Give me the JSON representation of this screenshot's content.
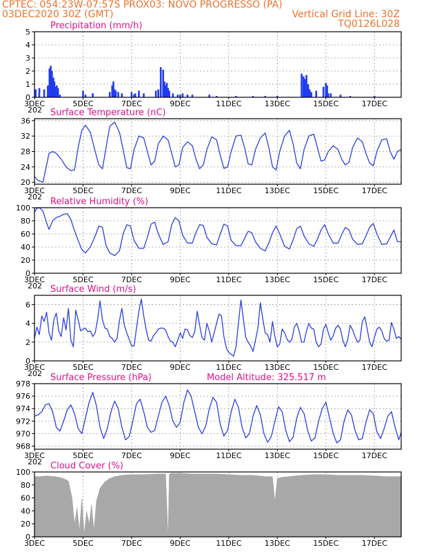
{
  "header": {
    "line1_left": "CPTEC:   054:23W-07:57S   PROX03: NOVO PROGRESSO (PA)",
    "line2_left": "03DEC2020 30Z (GMT)",
    "line2_right": "Vertical Grid Line: 30Z",
    "line3_right": "TQ0126L028"
  },
  "colors": {
    "header_text": "#e8732c",
    "panel_title": "#e0118a",
    "series_line": "#2b3fe0",
    "precip_bar": "#1f3bf0",
    "cloud_fill": "#a8a8a8",
    "grid": "#999999"
  },
  "shared_x": {
    "tick_labels": [
      "3DEC",
      "5DEC",
      "7DEC",
      "9DEC",
      "11DEC",
      "13DEC",
      "15DEC",
      "17DEC"
    ],
    "tick_days": [
      3,
      5,
      7,
      9,
      11,
      13,
      15,
      17
    ],
    "range_days": [
      3,
      18.1
    ],
    "cut_label": "202"
  },
  "chart_data": [
    {
      "id": "precipitation",
      "type": "bar",
      "title": "Precipitation (mm/h)",
      "ylim": [
        0,
        5
      ],
      "yticks": [
        0,
        1,
        2,
        3,
        4,
        5
      ],
      "grid": true,
      "x_days": [
        3.05,
        3.2,
        3.4,
        3.55,
        3.62,
        3.67,
        3.72,
        3.78,
        3.82,
        3.88,
        3.92,
        3.97,
        4.05,
        5.0,
        5.1,
        5.4,
        6.1,
        6.2,
        6.25,
        6.3,
        6.35,
        6.45,
        6.6,
        7.0,
        7.1,
        7.15,
        7.3,
        7.5,
        8.0,
        8.1,
        8.2,
        8.3,
        8.35,
        8.4,
        8.45,
        8.5,
        8.55,
        8.7,
        8.9,
        9.0,
        9.1,
        9.3,
        9.5,
        10.2,
        10.5,
        11.3,
        12.0,
        12.5,
        13.0,
        14.0,
        14.08,
        14.13,
        14.2,
        14.27,
        14.33,
        14.4,
        14.6,
        14.9,
        15.0,
        15.05,
        15.1,
        15.2,
        15.6,
        16.0,
        17.0
      ],
      "values": [
        0.6,
        0.7,
        0.6,
        0.9,
        2.2,
        2.4,
        2.0,
        1.5,
        1.2,
        0.8,
        0.9,
        0.7,
        0.2,
        0.5,
        0.2,
        0.3,
        0.4,
        0.9,
        1.2,
        0.6,
        0.5,
        0.4,
        0.3,
        0.4,
        0.2,
        0.3,
        0.5,
        0.3,
        0.5,
        0.6,
        2.3,
        2.1,
        1.2,
        0.9,
        1.1,
        0.7,
        0.5,
        0.3,
        0.2,
        0.2,
        0.3,
        0.2,
        0.2,
        0.2,
        0.1,
        0.1,
        0.1,
        0.1,
        0.1,
        1.8,
        1.6,
        1.4,
        1.7,
        1.0,
        0.6,
        0.4,
        0.5,
        0.8,
        1.1,
        0.9,
        0.3,
        0.3,
        0.2,
        0.1,
        0.1
      ]
    },
    {
      "id": "surface-temperature",
      "type": "line",
      "title": "Surface Temperature (nC)",
      "ylim": [
        19.5,
        36.5
      ],
      "yticks": [
        20,
        24,
        28,
        32,
        36
      ],
      "grid": true,
      "x_days": [
        3.0,
        3.15,
        3.35,
        3.5,
        3.6,
        3.75,
        3.9,
        4.1,
        4.3,
        4.5,
        4.65,
        4.8,
        4.95,
        5.1,
        5.3,
        5.5,
        5.65,
        5.8,
        5.95,
        6.1,
        6.3,
        6.5,
        6.65,
        6.8,
        6.95,
        7.1,
        7.3,
        7.5,
        7.65,
        7.8,
        7.95,
        8.1,
        8.3,
        8.5,
        8.65,
        8.8,
        8.95,
        9.1,
        9.3,
        9.5,
        9.65,
        9.8,
        9.95,
        10.1,
        10.3,
        10.5,
        10.65,
        10.8,
        10.95,
        11.1,
        11.3,
        11.5,
        11.65,
        11.8,
        11.95,
        12.1,
        12.3,
        12.5,
        12.65,
        12.8,
        12.95,
        13.1,
        13.3,
        13.5,
        13.65,
        13.8,
        13.95,
        14.1,
        14.3,
        14.5,
        14.65,
        14.8,
        14.95,
        15.1,
        15.3,
        15.5,
        15.65,
        15.8,
        15.95,
        16.1,
        16.3,
        16.5,
        16.65,
        16.8,
        16.95,
        17.1,
        17.3,
        17.5,
        17.65,
        17.8,
        17.95,
        18.1
      ],
      "values": [
        21.5,
        20.5,
        20.0,
        24.5,
        27.5,
        28.0,
        27.5,
        26.0,
        24.0,
        23.0,
        23.2,
        29.0,
        33.5,
        34.8,
        33.0,
        28.0,
        24.5,
        23.5,
        29.0,
        34.5,
        35.6,
        33.0,
        28.5,
        23.8,
        23.5,
        28.5,
        32.0,
        31.5,
        28.0,
        24.5,
        25.5,
        30.0,
        32.0,
        31.0,
        27.5,
        24.0,
        24.5,
        29.0,
        30.5,
        29.5,
        26.0,
        23.5,
        24.5,
        28.5,
        31.8,
        31.0,
        27.0,
        23.6,
        24.0,
        28.0,
        32.0,
        32.2,
        29.0,
        24.8,
        24.5,
        28.5,
        31.5,
        32.8,
        29.0,
        24.0,
        23.2,
        28.0,
        32.0,
        33.5,
        30.0,
        25.0,
        23.5,
        28.5,
        32.0,
        32.5,
        29.0,
        25.5,
        25.8,
        28.0,
        29.5,
        28.5,
        26.0,
        24.5,
        25.2,
        29.0,
        31.5,
        30.5,
        27.5,
        25.0,
        24.3,
        28.0,
        31.0,
        31.3,
        28.0,
        26.0,
        28.0,
        28.5
      ]
    },
    {
      "id": "relative-humidity",
      "type": "line",
      "title": "Relative Humidity (%)",
      "ylim": [
        0,
        100
      ],
      "yticks": [
        0,
        20,
        40,
        60,
        80,
        100
      ],
      "grid": true,
      "x_days": [
        3.0,
        3.1,
        3.2,
        3.35,
        3.5,
        3.6,
        3.75,
        3.9,
        4.05,
        4.2,
        4.35,
        4.5,
        4.6,
        4.8,
        4.95,
        5.1,
        5.3,
        5.5,
        5.65,
        5.8,
        5.95,
        6.1,
        6.3,
        6.5,
        6.65,
        6.8,
        6.95,
        7.1,
        7.3,
        7.5,
        7.65,
        7.8,
        7.95,
        8.1,
        8.3,
        8.5,
        8.65,
        8.8,
        8.95,
        9.1,
        9.3,
        9.5,
        9.65,
        9.8,
        9.95,
        10.1,
        10.3,
        10.5,
        10.65,
        10.8,
        10.95,
        11.1,
        11.3,
        11.5,
        11.65,
        11.8,
        11.95,
        12.1,
        12.3,
        12.5,
        12.65,
        12.8,
        12.95,
        13.1,
        13.3,
        13.5,
        13.65,
        13.8,
        13.95,
        14.1,
        14.3,
        14.5,
        14.65,
        14.8,
        14.95,
        15.1,
        15.3,
        15.5,
        15.65,
        15.8,
        15.95,
        16.1,
        16.3,
        16.5,
        16.65,
        16.8,
        16.95,
        17.1,
        17.3,
        17.5,
        17.65,
        17.8,
        17.95,
        18.1
      ],
      "values": [
        93,
        99,
        100,
        95,
        77,
        67,
        80,
        85,
        87,
        90,
        91,
        82,
        70,
        50,
        36,
        31,
        40,
        57,
        72,
        70,
        42,
        31,
        27,
        34,
        60,
        74,
        72,
        50,
        38,
        38,
        55,
        75,
        78,
        60,
        44,
        48,
        74,
        85,
        80,
        58,
        46,
        46,
        62,
        74,
        73,
        55,
        45,
        43,
        60,
        75,
        72,
        50,
        42,
        42,
        53,
        64,
        62,
        48,
        38,
        34,
        46,
        62,
        72,
        60,
        41,
        37,
        51,
        68,
        72,
        57,
        45,
        41,
        52,
        66,
        74,
        60,
        46,
        46,
        59,
        70,
        66,
        52,
        44,
        45,
        57,
        70,
        76,
        60,
        44,
        45,
        55,
        66,
        48,
        48
      ]
    },
    {
      "id": "surface-wind",
      "type": "line",
      "title": "Surface Wind (m/s)",
      "ylim": [
        0,
        7
      ],
      "yticks": [
        0,
        2,
        4,
        6
      ],
      "grid": true,
      "x_days": [
        3.0,
        3.1,
        3.2,
        3.3,
        3.4,
        3.5,
        3.6,
        3.7,
        3.8,
        3.9,
        4.0,
        4.1,
        4.2,
        4.3,
        4.4,
        4.5,
        4.6,
        4.7,
        4.8,
        4.9,
        5.0,
        5.1,
        5.2,
        5.3,
        5.4,
        5.5,
        5.6,
        5.7,
        5.8,
        5.9,
        6.0,
        6.1,
        6.2,
        6.3,
        6.4,
        6.5,
        6.6,
        6.7,
        6.8,
        6.9,
        7.0,
        7.1,
        7.2,
        7.3,
        7.4,
        7.5,
        7.6,
        7.7,
        7.8,
        7.9,
        8.0,
        8.1,
        8.2,
        8.3,
        8.4,
        8.5,
        8.6,
        8.7,
        8.8,
        8.9,
        9.0,
        9.1,
        9.2,
        9.3,
        9.4,
        9.5,
        9.6,
        9.7,
        9.8,
        9.9,
        10.0,
        10.1,
        10.2,
        10.3,
        10.4,
        10.5,
        10.6,
        10.7,
        10.8,
        10.9,
        11.0,
        11.1,
        11.2,
        11.3,
        11.4,
        11.5,
        11.6,
        11.7,
        11.8,
        11.9,
        12.0,
        12.1,
        12.2,
        12.3,
        12.4,
        12.5,
        12.6,
        12.7,
        12.8,
        12.9,
        13.0,
        13.1,
        13.2,
        13.3,
        13.4,
        13.5,
        13.6,
        13.7,
        13.8,
        13.9,
        14.0,
        14.1,
        14.2,
        14.3,
        14.4,
        14.5,
        14.6,
        14.7,
        14.8,
        14.9,
        15.0,
        15.1,
        15.2,
        15.3,
        15.4,
        15.5,
        15.6,
        15.7,
        15.8,
        15.9,
        16.0,
        16.1,
        16.2,
        16.3,
        16.4,
        16.5,
        16.6,
        16.7,
        16.8,
        16.9,
        17.0,
        17.1,
        17.2,
        17.3,
        17.4,
        17.5,
        17.6,
        17.7,
        17.8,
        17.9,
        18.0,
        18.1
      ],
      "values": [
        2.4,
        3.6,
        2.8,
        4.8,
        4.2,
        5.2,
        3.0,
        2.2,
        4.4,
        5.1,
        3.2,
        2.6,
        4.6,
        3.3,
        5.6,
        2.2,
        1.5,
        5.4,
        4.4,
        3.2,
        3.4,
        3.5,
        3.1,
        3.2,
        2.6,
        3.0,
        4.4,
        6.4,
        4.4,
        3.5,
        3.4,
        2.6,
        2.4,
        2.0,
        2.4,
        4.3,
        5.6,
        3.8,
        3.0,
        2.3,
        1.6,
        1.6,
        3.5,
        5.3,
        6.6,
        4.8,
        3.3,
        2.2,
        2.1,
        2.7,
        3.0,
        3.4,
        3.5,
        3.5,
        3.3,
        2.6,
        2.1,
        2.0,
        1.5,
        2.2,
        3.0,
        2.4,
        3.4,
        3.3,
        2.7,
        2.5,
        3.1,
        5.3,
        3.8,
        2.5,
        2.2,
        4.0,
        3.2,
        2.0,
        3.0,
        4.0,
        5.0,
        4.8,
        2.6,
        1.4,
        0.9,
        0.7,
        0.5,
        1.5,
        4.0,
        6.5,
        4.5,
        2.5,
        2.0,
        1.6,
        1.0,
        2.2,
        3.5,
        6.2,
        4.5,
        3.0,
        2.8,
        2.0,
        4.2,
        2.6,
        1.5,
        1.8,
        3.4,
        3.0,
        2.3,
        2.0,
        2.3,
        3.6,
        4.0,
        3.2,
        2.0,
        2.0,
        3.2,
        4.0,
        3.5,
        3.4,
        2.0,
        1.5,
        1.8,
        3.4,
        3.9,
        3.0,
        2.2,
        2.7,
        3.5,
        3.8,
        3.4,
        2.2,
        1.5,
        2.3,
        3.8,
        3.3,
        2.6,
        2.0,
        2.2,
        4.2,
        4.7,
        3.4,
        2.0,
        1.5,
        2.5,
        3.4,
        3.6,
        3.2,
        2.4,
        2.1,
        2.2,
        4.1,
        3.4,
        2.4,
        2.6,
        2.3
      ]
    },
    {
      "id": "surface-pressure",
      "type": "line",
      "title": "Surface Pressure (hPa)",
      "annotation": "Model Altitude: 325.517 m",
      "ylim": [
        967.5,
        978
      ],
      "yticks": [
        968,
        970,
        972,
        974,
        976,
        978
      ],
      "grid": true,
      "x_days": [
        3.0,
        3.15,
        3.3,
        3.45,
        3.6,
        3.75,
        3.9,
        4.05,
        4.2,
        4.35,
        4.5,
        4.65,
        4.8,
        4.95,
        5.1,
        5.25,
        5.4,
        5.55,
        5.7,
        5.85,
        6.0,
        6.15,
        6.3,
        6.45,
        6.6,
        6.75,
        6.9,
        7.05,
        7.2,
        7.35,
        7.5,
        7.65,
        7.8,
        7.95,
        8.1,
        8.25,
        8.4,
        8.55,
        8.7,
        8.85,
        9.0,
        9.15,
        9.3,
        9.45,
        9.6,
        9.75,
        9.9,
        10.05,
        10.2,
        10.35,
        10.5,
        10.65,
        10.8,
        10.95,
        11.1,
        11.25,
        11.4,
        11.55,
        11.7,
        11.85,
        12.0,
        12.15,
        12.3,
        12.45,
        12.6,
        12.75,
        12.9,
        13.05,
        13.2,
        13.35,
        13.5,
        13.65,
        13.8,
        13.95,
        14.1,
        14.25,
        14.4,
        14.55,
        14.7,
        14.85,
        15.0,
        15.15,
        15.3,
        15.45,
        15.6,
        15.75,
        15.9,
        16.05,
        16.2,
        16.35,
        16.5,
        16.65,
        16.8,
        16.95,
        17.1,
        17.25,
        17.4,
        17.55,
        17.7,
        17.85,
        18.0,
        18.1
      ],
      "values": [
        972.8,
        973.0,
        973.5,
        974.6,
        974.8,
        973.5,
        971.0,
        970.4,
        972.0,
        973.8,
        974.6,
        973.2,
        970.8,
        970.0,
        972.5,
        975.0,
        976.6,
        974.5,
        971.0,
        969.2,
        970.8,
        973.5,
        975.2,
        974.0,
        971.0,
        969.0,
        969.5,
        972.0,
        974.8,
        975.5,
        973.5,
        971.0,
        970.2,
        970.5,
        972.8,
        975.0,
        976.0,
        974.5,
        972.0,
        971.0,
        971.8,
        975.0,
        977.0,
        976.0,
        973.5,
        971.0,
        970.0,
        971.2,
        974.0,
        975.8,
        975.0,
        971.5,
        969.6,
        970.5,
        973.5,
        975.5,
        974.2,
        971.0,
        969.3,
        970.0,
        972.8,
        974.5,
        973.0,
        970.0,
        968.6,
        969.5,
        972.0,
        974.3,
        973.5,
        970.5,
        968.7,
        969.4,
        972.5,
        974.2,
        973.2,
        970.5,
        968.8,
        969.3,
        972.0,
        974.0,
        975.0,
        972.5,
        970.0,
        968.5,
        969.0,
        972.0,
        973.8,
        973.0,
        970.5,
        969.0,
        969.2,
        971.8,
        973.8,
        973.2,
        970.3,
        969.2,
        970.8,
        972.8,
        973.5,
        971.0,
        969.0,
        970.2
      ]
    },
    {
      "id": "cloud-cover",
      "type": "area",
      "title": "Cloud Cover (%)",
      "ylim": [
        0,
        100
      ],
      "yticks": [
        0,
        20,
        40,
        60,
        80,
        100
      ],
      "grid": false,
      "x_days": [
        3.0,
        3.2,
        3.5,
        3.8,
        4.0,
        4.2,
        4.4,
        4.55,
        4.65,
        4.75,
        4.85,
        4.95,
        5.05,
        5.15,
        5.25,
        5.35,
        5.45,
        5.55,
        5.7,
        5.9,
        6.1,
        6.3,
        6.6,
        7.0,
        7.5,
        8.0,
        8.4,
        8.5,
        8.55,
        8.6,
        9.0,
        9.5,
        10.0,
        10.5,
        11.0,
        11.5,
        12.0,
        12.5,
        12.8,
        12.9,
        13.0,
        13.2,
        13.5,
        14.0,
        14.5,
        15.0,
        15.5,
        16.0,
        16.5,
        17.0,
        17.5,
        18.1
      ],
      "values": [
        93,
        93,
        94,
        93,
        92,
        90,
        86,
        60,
        20,
        45,
        10,
        60,
        5,
        40,
        20,
        50,
        10,
        55,
        75,
        85,
        90,
        93,
        95,
        96,
        96,
        97,
        97,
        0,
        96,
        98,
        98,
        97,
        97,
        97,
        96,
        95,
        95,
        93,
        93,
        55,
        90,
        92,
        93,
        95,
        96,
        96,
        95,
        95,
        95,
        94,
        93,
        93
      ]
    }
  ]
}
